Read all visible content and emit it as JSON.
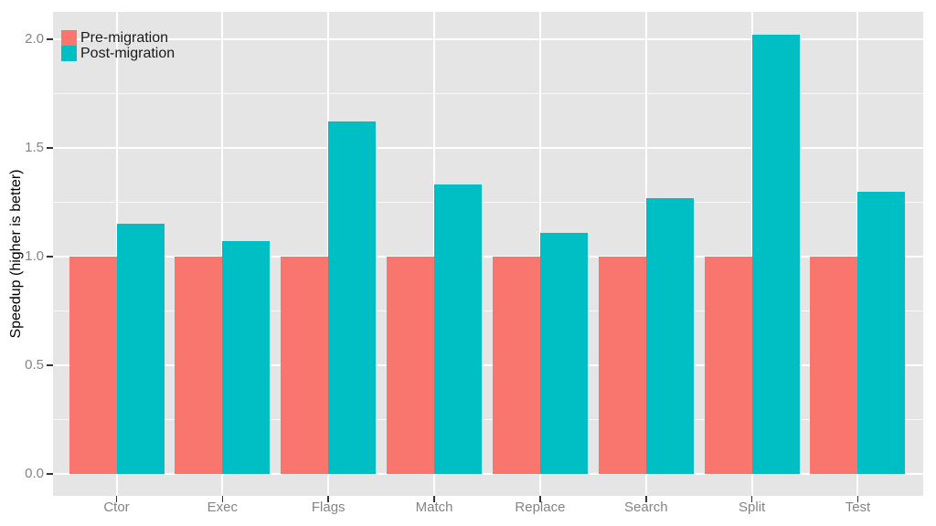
{
  "chart_data": {
    "type": "bar",
    "title": "",
    "xlabel": "",
    "ylabel": "Speedup (higher is better)",
    "categories": [
      "Ctor",
      "Exec",
      "Flags",
      "Match",
      "Replace",
      "Search",
      "Split",
      "Test"
    ],
    "series": [
      {
        "name": "Pre-migration",
        "color": "#F8766D",
        "values": [
          1.0,
          1.0,
          1.0,
          1.0,
          1.0,
          1.0,
          1.0,
          1.0
        ]
      },
      {
        "name": "Post-migration",
        "color": "#00BFC4",
        "values": [
          1.15,
          1.07,
          1.62,
          1.33,
          1.11,
          1.27,
          2.02,
          1.3
        ]
      }
    ],
    "ytick_labels": [
      "0.0",
      "0.5",
      "1.0",
      "1.5",
      "2.0"
    ],
    "ytick_values": [
      0.0,
      0.5,
      1.0,
      1.5,
      2.0
    ],
    "ylim": [
      -0.1,
      2.13
    ],
    "grid": "white major and minor horizontal gridlines, white vertical gridlines at category centers, on gray panel",
    "legend_position": "top-left inside panel",
    "colors": {
      "panel_background": "#e5e5e5",
      "figure_background": "#ffffff",
      "gridline": "#ffffff",
      "axis_text": "#848484",
      "tick_mark": "#333333",
      "legend_text": "#1a1a1a"
    }
  }
}
